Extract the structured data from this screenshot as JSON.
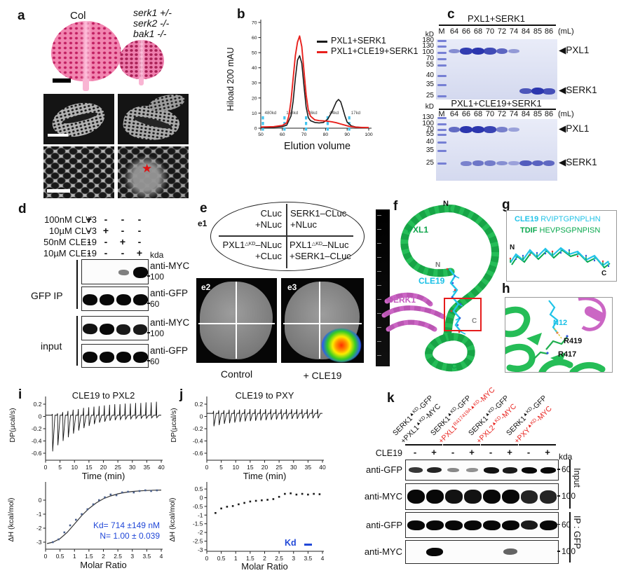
{
  "panels": {
    "a": {
      "label": "a",
      "col": "Col",
      "mutant_lines": [
        "serk1 +/-",
        "serk2 -/-",
        "bak1 -/-"
      ]
    },
    "b": {
      "label": "b"
    },
    "c": {
      "label": "c",
      "unit": "(mL)",
      "gels": [
        {
          "title": "PXL1+SERK1",
          "lanes": [
            "M",
            "64",
            "66",
            "68",
            "70",
            "72",
            "74",
            "84",
            "85",
            "86"
          ],
          "ladder": [
            [
              "kD",
              50
            ],
            [
              "180",
              58
            ],
            [
              "130",
              66
            ],
            [
              "100",
              75
            ],
            [
              "70",
              84
            ],
            [
              "55",
              93
            ],
            [
              "40",
              108
            ],
            [
              "35",
              121
            ],
            [
              "25",
              137
            ]
          ],
          "rows": [
            {
              "arrow": "PXL1",
              "y": 73,
              "bands": [
                0,
                0.35,
                0.95,
                1,
                0.85,
                0.65,
                0.25,
                0,
                0,
                0
              ]
            },
            {
              "arrow": "SERK1",
              "y": 130,
              "bands": [
                0,
                0,
                0,
                0,
                0,
                0,
                0,
                0.75,
                1,
                0.8
              ]
            }
          ]
        },
        {
          "title": "PXL1+CLE19+SERK1",
          "lanes": [
            "M",
            "64",
            "66",
            "68",
            "70",
            "72",
            "74",
            "84",
            "85",
            "86"
          ],
          "ladder": [
            [
              "kD",
              153
            ],
            [
              "130",
              168
            ],
            [
              "100",
              177
            ],
            [
              "70",
              185
            ],
            [
              "55",
              192
            ],
            [
              "40",
              203
            ],
            [
              "35",
              215
            ],
            [
              "25",
              233
            ]
          ],
          "rows": [
            {
              "arrow": "PXL1",
              "y": 185,
              "bands": [
                0,
                0.6,
                1,
                1,
                0.9,
                0.45,
                0.2,
                0,
                0,
                0
              ]
            },
            {
              "arrow": "SERK1",
              "y": 233,
              "bands": [
                0,
                0,
                0.4,
                0.5,
                0.45,
                0.3,
                0.15,
                0.7,
                0.65,
                0.6
              ]
            }
          ]
        }
      ]
    },
    "d": {
      "label": "d",
      "kda": "kda",
      "treatments": [
        {
          "name": "100nM CLV3",
          "signs": [
            "+",
            "-",
            "-",
            "-"
          ]
        },
        {
          "name": "10µM CLV3",
          "signs": [
            "-",
            "+",
            "-",
            "-"
          ]
        },
        {
          "name": "50nM CLE19",
          "signs": [
            "-",
            "-",
            "+",
            "-"
          ]
        },
        {
          "name": "10µM CLE19",
          "signs": [
            "-",
            "-",
            "-",
            "+"
          ]
        }
      ],
      "groups": [
        {
          "name": "GFP IP"
        },
        {
          "name": "input"
        }
      ],
      "blots": [
        {
          "ab": "anti-MYC",
          "size": "100",
          "bands": [
            0,
            0,
            0.3,
            1
          ]
        },
        {
          "ab": "anti-GFP",
          "size": "60",
          "bands": [
            1,
            1,
            1,
            1
          ]
        },
        {
          "ab": "anti-MYC",
          "size": "100",
          "bands": [
            0.95,
            1,
            0.9,
            0.9
          ]
        },
        {
          "ab": "anti-GFP",
          "size": "60",
          "bands": [
            1,
            1,
            1,
            1
          ]
        }
      ]
    },
    "e": {
      "label": "e",
      "e1": "e1",
      "q1": [
        "CLuc",
        "+NLuc"
      ],
      "q2": [
        "SERK1–CLuc",
        "+NLuc"
      ],
      "q3": {
        "pre": "PXL1",
        "sup": "△KD",
        "post": "–NLuc",
        "line2": "+CLuc"
      },
      "q4": {
        "pre": "PXL1",
        "sup": "△KD",
        "post": "–NLuc",
        "line2": "+SERK1–CLuc"
      },
      "e2": "e2",
      "e3": "e3",
      "cap2": "Control",
      "cap3": "+ CLE19"
    },
    "f": {
      "label": "f",
      "n_top": "N",
      "pxl1": "PXL1",
      "n_pep": "N",
      "cle19": "CLE19",
      "serk1": "SERK1",
      "c_mid": "C",
      "c_bot": "C"
    },
    "g": {
      "label": "g",
      "row1": {
        "name": "CLE19",
        "seq": " RVIPTGPNPLHN",
        "color": "#23c4e8"
      },
      "row2": {
        "name": "TDIF",
        "seq": " HEVPSGPNPISN",
        "color": "#0aa84f"
      },
      "n": "N",
      "c": "C"
    },
    "h": {
      "label": "h",
      "n12": "N12",
      "r419": "R419",
      "r417": "R417"
    },
    "i": {
      "label": "i"
    },
    "j": {
      "label": "j",
      "kd_dash": "–"
    },
    "k": {
      "label": "k",
      "cle19": "CLE19",
      "kda": "kda",
      "signs": [
        "-",
        "+",
        "-",
        "+",
        "-",
        "+",
        "-",
        "+"
      ],
      "groups": [
        {
          "line1": {
            "pre": "SERK1",
            "sup": "▲KD",
            "post": "-GFP"
          },
          "line2": {
            "pre": "+PXL1",
            "sup": "▲KD",
            "post": "-MYC"
          },
          "color2": "#111111"
        },
        {
          "line1": {
            "pre": "SERK1",
            "sup": "▲KD",
            "post": "-GFP"
          },
          "line2": {
            "pre": "+PXL1",
            "sup": "R417419A▲KD",
            "post": "-MYC"
          },
          "color2": "#e8211d"
        },
        {
          "line1": {
            "pre": "SERK1",
            "sup": "▲KD",
            "post": "-GFP"
          },
          "line2": {
            "pre": "+PXL2",
            "sup": "▲KD",
            "post": "-MYC"
          },
          "color2": "#e8211d"
        },
        {
          "line1": {
            "pre": "SERK1",
            "sup": "▲KD",
            "post": "-GFP"
          },
          "line2": {
            "pre": "+PXY",
            "sup": "▲KD",
            "post": "-MYC"
          },
          "color2": "#e8211d"
        }
      ],
      "rows": [
        {
          "ab": "anti-GFP",
          "size": "60",
          "bands": [
            0.75,
            0.85,
            0.3,
            0.25,
            0.95,
            0.9,
            1,
            1
          ]
        },
        {
          "ab": "anti-MYC",
          "size": "100",
          "bands": [
            1,
            1,
            0.95,
            0.95,
            1,
            1,
            0.85,
            0.85
          ]
        },
        {
          "ab": "anti-GFP",
          "size": "60",
          "bands": [
            1,
            1,
            1,
            1,
            1,
            1,
            0.9,
            1
          ]
        },
        {
          "ab": "anti-MYC",
          "size": "100",
          "bands": [
            0,
            1,
            0,
            0,
            0,
            0.5,
            0,
            0
          ]
        }
      ],
      "side": [
        {
          "name": "Input"
        },
        {
          "name": "IP : GFP"
        }
      ]
    }
  },
  "chart_data": [
    {
      "id": "size-exclusion",
      "type": "line",
      "ylabel": "Hiload 200  mAU",
      "xlabel": "Elution volume",
      "xlim": [
        50,
        100
      ],
      "ylim": [
        0,
        70
      ],
      "xticks": [
        50,
        60,
        70,
        80,
        90,
        100
      ],
      "yticks": [
        0,
        10,
        20,
        30,
        40,
        50,
        60,
        70
      ],
      "markers": [
        {
          "x": 50,
          "label": "480kd"
        },
        {
          "x": 60,
          "label": "158kd"
        },
        {
          "x": 70,
          "label": "76kd"
        },
        {
          "x": 80,
          "label": "44kd"
        },
        {
          "x": 90,
          "label": "17kd"
        }
      ],
      "series": [
        {
          "name": "PXL1+SERK1",
          "color": "#1a1a1a",
          "points": [
            [
              50,
              0.5
            ],
            [
              56,
              0.6
            ],
            [
              60,
              1
            ],
            [
              62,
              2
            ],
            [
              64,
              8
            ],
            [
              65,
              18
            ],
            [
              66,
              33
            ],
            [
              67,
              45
            ],
            [
              68,
              48
            ],
            [
              69,
              43
            ],
            [
              70,
              28
            ],
            [
              71,
              14
            ],
            [
              72,
              7
            ],
            [
              73,
              5
            ],
            [
              75,
              3.8
            ],
            [
              77,
              3.5
            ],
            [
              79,
              3.8
            ],
            [
              81,
              6
            ],
            [
              83,
              11
            ],
            [
              85,
              17.5
            ],
            [
              86,
              19
            ],
            [
              87,
              17.5
            ],
            [
              88,
              13
            ],
            [
              89,
              8
            ],
            [
              90,
              4
            ],
            [
              92,
              1.5
            ],
            [
              94,
              0.8
            ],
            [
              97,
              0.4
            ],
            [
              100,
              0.3
            ]
          ]
        },
        {
          "name": "PXL1+CLE19+SERK1",
          "color": "#e8211d",
          "points": [
            [
              50,
              0.8
            ],
            [
              56,
              1
            ],
            [
              60,
              1.8
            ],
            [
              62,
              3.5
            ],
            [
              63,
              8
            ],
            [
              64,
              18
            ],
            [
              65,
              33
            ],
            [
              66,
              48
            ],
            [
              67,
              57
            ],
            [
              68,
              61
            ],
            [
              69,
              54
            ],
            [
              70,
              38
            ],
            [
              71,
              22
            ],
            [
              72,
              12
            ],
            [
              73,
              8
            ],
            [
              75,
              5.5
            ],
            [
              77,
              5
            ],
            [
              79,
              4.8
            ],
            [
              81,
              4.6
            ],
            [
              83,
              4.2
            ],
            [
              85,
              3.6
            ],
            [
              87,
              2.8
            ],
            [
              89,
              2
            ],
            [
              91,
              1.2
            ],
            [
              94,
              0.7
            ],
            [
              97,
              0.5
            ],
            [
              100,
              0.4
            ]
          ]
        }
      ]
    },
    {
      "id": "itc-cle19-pxl2-dp",
      "type": "line",
      "title": "CLE19 to PXL2",
      "ylabel": "DP(µcal/s)",
      "xlabel": "Time (min)",
      "xlim": [
        0,
        40
      ],
      "yticks": [
        0.2,
        0,
        -0.2,
        -0.4,
        -0.6
      ],
      "xticks": [
        0,
        5,
        10,
        15,
        20,
        25,
        30,
        35,
        40
      ],
      "baseline": 0.02,
      "t0": 2.4,
      "dt": 1.8,
      "downs": [
        -0.57,
        -0.47,
        -0.4,
        -0.34,
        -0.28,
        -0.23,
        -0.19,
        -0.155,
        -0.125,
        -0.1,
        -0.085,
        -0.07,
        -0.06,
        -0.05,
        -0.045,
        -0.04,
        -0.035,
        -0.03,
        -0.03,
        -0.025,
        -0.02
      ],
      "ups": [
        0.04,
        0.05,
        0.07,
        0.09,
        0.11,
        0.12,
        0.14,
        0.15,
        0.16,
        0.17,
        0.18,
        0.19,
        0.2,
        0.2,
        0.21,
        0.21,
        0.22,
        0.22,
        0.23,
        0.23,
        0.24
      ]
    },
    {
      "id": "itc-cle19-pxl2-dh",
      "type": "scatter",
      "ylabel": "ΔH (kcal/mol)",
      "xlabel": "Molar Ratio",
      "xlim": [
        0,
        4
      ],
      "yticks": [
        0,
        -1,
        -2,
        -3
      ],
      "xticks": [
        0,
        0.5,
        1,
        1.5,
        2,
        2.5,
        3,
        3.5,
        4
      ],
      "kd": "Kd= 714 ±149 nM",
      "n": "N= 1.00 ± 0.039",
      "pcolor": "#4a5f8a",
      "points": [
        [
          0.25,
          -3.0
        ],
        [
          0.45,
          -2.8
        ],
        [
          0.65,
          -2.3
        ],
        [
          0.85,
          -1.8
        ],
        [
          1.05,
          -1.4
        ],
        [
          1.25,
          -1.0
        ],
        [
          1.45,
          -0.65
        ],
        [
          1.65,
          -0.3
        ],
        [
          1.85,
          0.0
        ],
        [
          2.05,
          0.2
        ],
        [
          2.25,
          0.4
        ],
        [
          2.45,
          0.35
        ],
        [
          2.65,
          0.55
        ],
        [
          2.85,
          0.6
        ],
        [
          3.05,
          0.55
        ],
        [
          3.25,
          0.65
        ],
        [
          3.45,
          0.7
        ],
        [
          3.65,
          0.65
        ],
        [
          3.85,
          0.7
        ]
      ],
      "fit": [
        [
          0.05,
          -3.1
        ],
        [
          0.25,
          -3.0
        ],
        [
          0.5,
          -2.75
        ],
        [
          0.75,
          -2.3
        ],
        [
          1,
          -1.7
        ],
        [
          1.25,
          -1.1
        ],
        [
          1.5,
          -0.6
        ],
        [
          1.75,
          -0.2
        ],
        [
          2,
          0.1
        ],
        [
          2.25,
          0.3
        ],
        [
          2.5,
          0.45
        ],
        [
          2.75,
          0.55
        ],
        [
          3,
          0.62
        ],
        [
          3.25,
          0.66
        ],
        [
          3.5,
          0.69
        ],
        [
          3.75,
          0.71
        ],
        [
          4,
          0.72
        ]
      ]
    },
    {
      "id": "itc-cle19-pxy-dp",
      "type": "line",
      "title": "CLE19 to PXY",
      "ylabel": "DP(µcal/s)",
      "xlabel": "Time (min)",
      "xlim": [
        0,
        40
      ],
      "yticks": [
        0.2,
        0,
        -0.2,
        -0.4,
        -0.6
      ],
      "xticks": [
        0,
        5,
        10,
        15,
        20,
        25,
        30,
        35,
        40
      ],
      "baseline": 0.05,
      "t0": 2.4,
      "dt": 1.8,
      "downs": [
        -0.16,
        -0.14,
        -0.12,
        -0.11,
        -0.1,
        -0.09,
        -0.08,
        -0.075,
        -0.07,
        -0.065,
        -0.06,
        -0.055,
        -0.05,
        -0.05,
        -0.045,
        -0.04,
        -0.04,
        -0.035,
        -0.035,
        -0.03,
        -0.03
      ],
      "ups": [
        0.09,
        0.1,
        0.1,
        0.11,
        0.11,
        0.11,
        0.12,
        0.12,
        0.12,
        0.12,
        0.12,
        0.12,
        0.12,
        0.12,
        0.12,
        0.12,
        0.12,
        0.12,
        0.12,
        0.12,
        0.12
      ]
    },
    {
      "id": "itc-cle19-pxy-dh",
      "type": "scatter",
      "ylabel": "ΔH (kcal/mol)",
      "xlabel": "Molar Ratio",
      "xlim": [
        0,
        4
      ],
      "yticks": [
        0.5,
        0,
        -0.5,
        -1,
        -1.5,
        -2,
        -2.5,
        -3
      ],
      "xticks": [
        0,
        0.5,
        1,
        1.5,
        2,
        2.5,
        3,
        3.5,
        4
      ],
      "kd": "Kd",
      "pcolor": "#1a1a1a",
      "points": [
        [
          0.3,
          -0.88
        ],
        [
          0.5,
          -0.62
        ],
        [
          0.7,
          -0.52
        ],
        [
          0.9,
          -0.48
        ],
        [
          1.1,
          -0.38
        ],
        [
          1.3,
          -0.3
        ],
        [
          1.5,
          -0.22
        ],
        [
          1.7,
          -0.18
        ],
        [
          1.9,
          -0.15
        ],
        [
          2.1,
          -0.12
        ],
        [
          2.3,
          -0.08
        ],
        [
          2.5,
          0.05
        ],
        [
          2.7,
          0.22
        ],
        [
          2.9,
          0.25
        ],
        [
          3.1,
          0.18
        ],
        [
          3.3,
          0.22
        ],
        [
          3.5,
          0.18
        ],
        [
          3.7,
          0.22
        ],
        [
          3.9,
          0.2
        ]
      ]
    }
  ]
}
